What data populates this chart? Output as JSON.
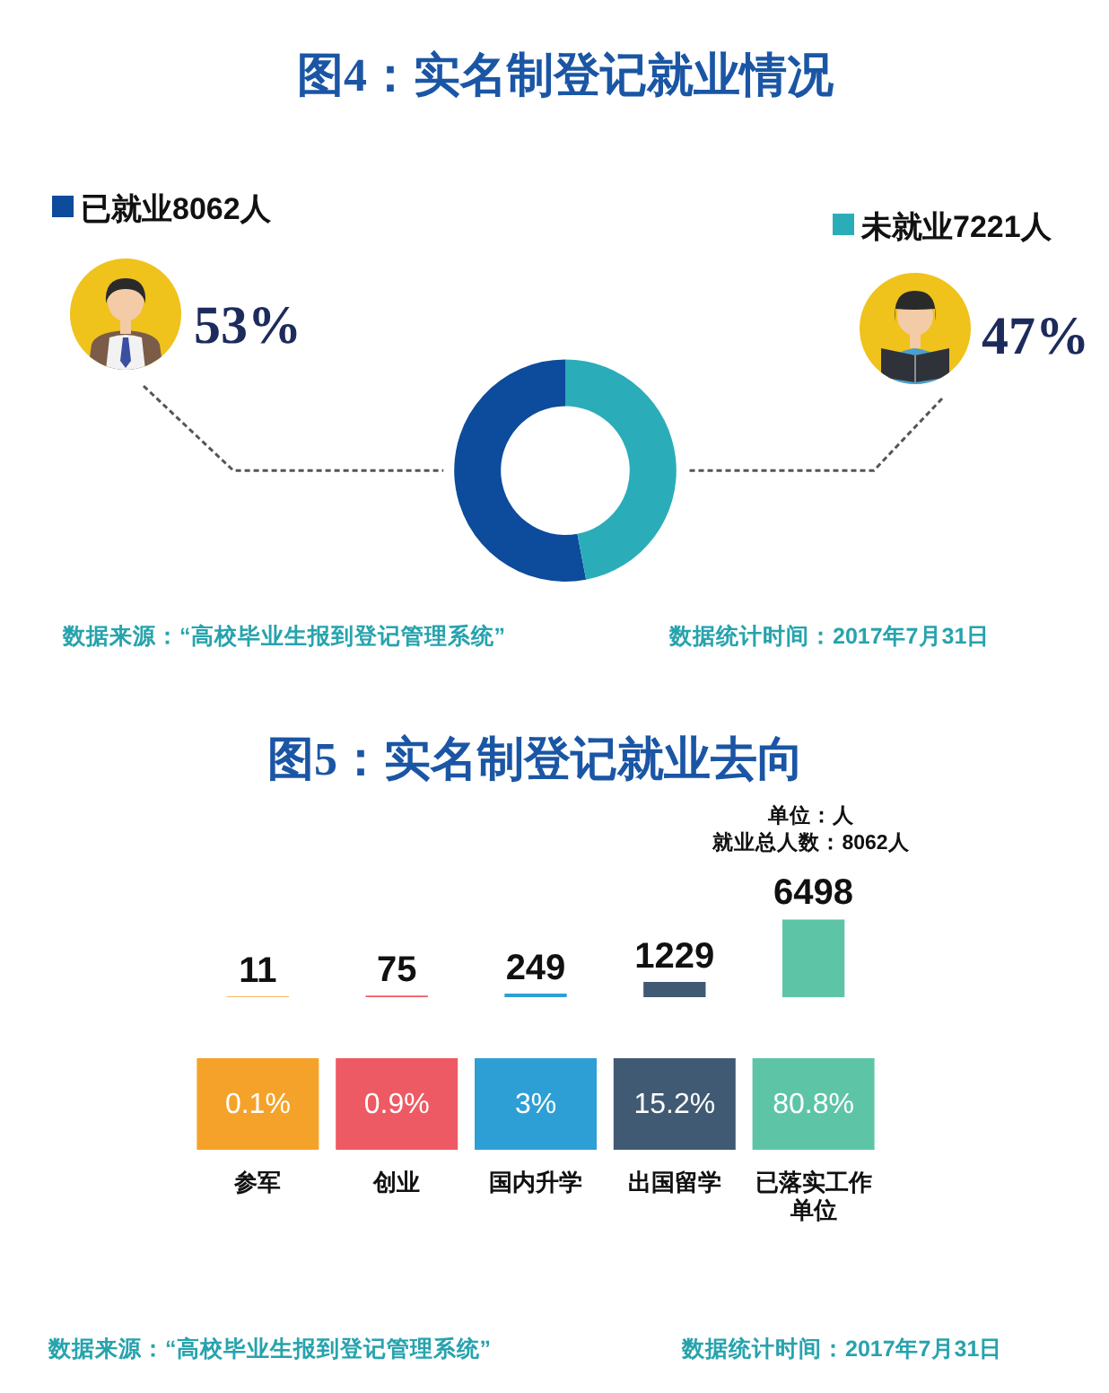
{
  "chart_data": [
    {
      "type": "donut",
      "title": "图4：实名制登记就业情况",
      "categories": [
        "已就业8062人",
        "未就业7221人"
      ],
      "values": [
        53,
        47
      ],
      "colors": [
        "#0d4b9c",
        "#2aadb9"
      ],
      "value_labels": [
        "53%",
        "47%"
      ],
      "legend": "top",
      "annotations": [
        "数据来源：“高校毕业生报到登记管理系统”",
        "数据统计时间：2017年7月31日"
      ]
    },
    {
      "type": "bar",
      "title": "图5：实名制登记就业去向",
      "categories": [
        "参军",
        "创业",
        "国内升学",
        "出国留学",
        "已落实工作单位"
      ],
      "values": [
        11,
        75,
        249,
        1229,
        6498
      ],
      "colors": [
        "#f5a22b",
        "#ee5a63",
        "#2e9fd5",
        "#415a73",
        "#5dc5a6"
      ],
      "data_labels": true,
      "annotations": [
        "单位：人",
        "就业总人数：8062人",
        "0.1%",
        "0.9%",
        "3%",
        "15.2%",
        "80.8%",
        "数据来源：“高校毕业生报到登记管理系统”",
        "数据统计时间：2017年7月31日"
      ]
    }
  ]
}
